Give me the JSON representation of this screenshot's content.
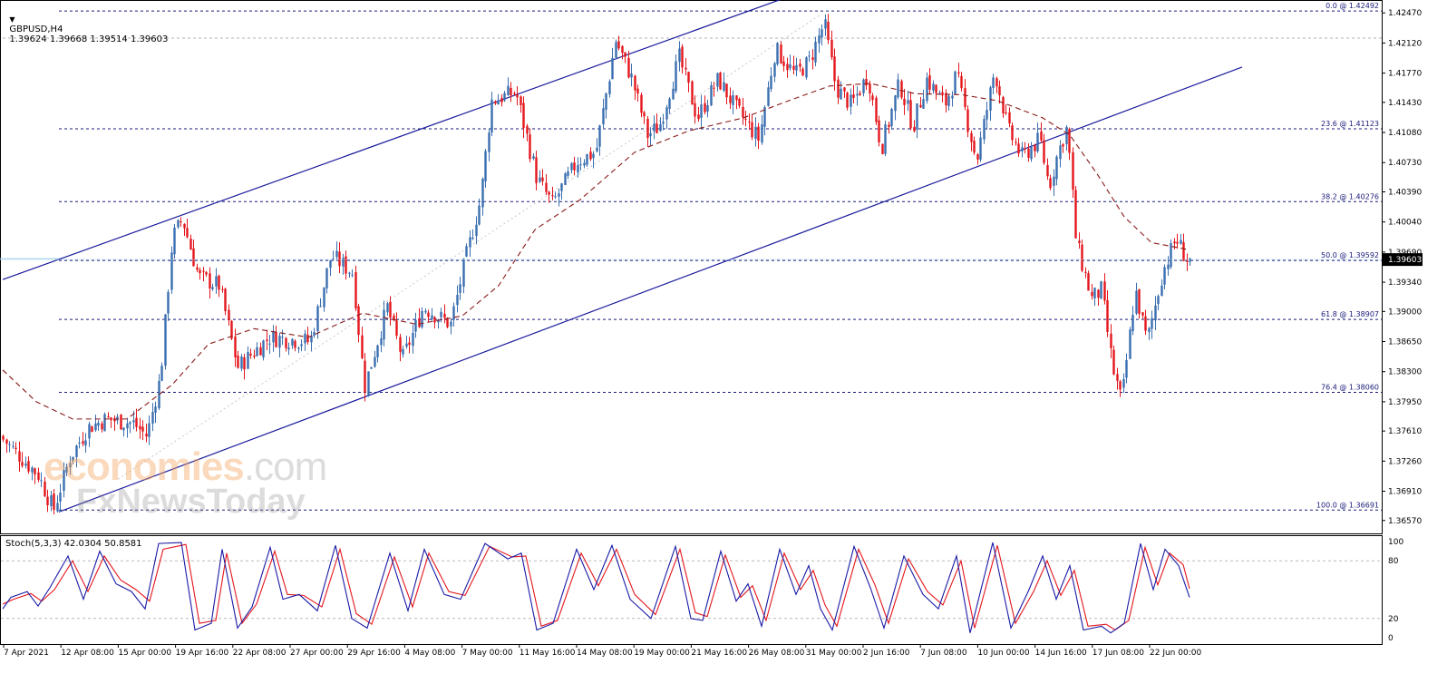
{
  "header": {
    "arrow_icon": "triangle-down-icon",
    "symbol": "GBPUSD,H4",
    "ohlc": "1.39624 1.39668 1.39514 1.39603"
  },
  "stoch_header": "Stoch(5,3,3) 42.0304 50.8581",
  "watermark": {
    "brand": "economies",
    "domain": ".com",
    "sub": "FxNewsToday"
  },
  "colors": {
    "bull": "#3a6fb0",
    "bear": "#e4161c",
    "ma": "#8b1a1a",
    "channel": "#1a1a9c",
    "fib": "#1a1a7a",
    "price_tag_bg": "#000000",
    "stoch_main": "#1a1aa6",
    "stoch_signal": "#e4161c"
  },
  "chart_data": {
    "type": "candlestick",
    "symbol": "GBPUSD",
    "timeframe": "H4",
    "price_axis": {
      "labels": [
        "1.42470",
        "1.42120",
        "1.41770",
        "1.41430",
        "1.41080",
        "1.40730",
        "1.40390",
        "1.40040",
        "1.39690",
        "1.39340",
        "1.39000",
        "1.38650",
        "1.38300",
        "1.37950",
        "1.37610",
        "1.37260",
        "1.36910",
        "1.36570"
      ],
      "range": [
        1.3642,
        1.4262
      ]
    },
    "current_price": "1.39603",
    "time_labels": [
      "7 Apr 2021",
      "12 Apr 08:00",
      "15 Apr 00:00",
      "19 Apr 16:00",
      "22 Apr 08:00",
      "27 Apr 00:00",
      "29 Apr 16:00",
      "4 May 08:00",
      "7 May 00:00",
      "11 May 16:00",
      "14 May 08:00",
      "19 May 00:00",
      "21 May 16:00",
      "26 May 08:00",
      "31 May 00:00",
      "2 Jun 16:00",
      "7 Jun 08:00",
      "10 Jun 00:00",
      "14 Jun 16:00",
      "17 Jun 08:00",
      "22 Jun 00:00"
    ],
    "fibonacci": [
      {
        "label": "0.0 @ 1.42492",
        "price": 1.42492
      },
      {
        "label": "23.6 @ 1.41123",
        "price": 1.41123
      },
      {
        "label": "38.2 @ 1.40276",
        "price": 1.40276
      },
      {
        "label": "50.0 @ 1.39592",
        "price": 1.39592
      },
      {
        "label": "61.8 @ 1.38907",
        "price": 1.38907
      },
      {
        "label": "76.4 @ 1.38060",
        "price": 1.3806
      },
      {
        "label": "100.0 @ 1.36691",
        "price": 1.36691
      }
    ],
    "price_path": [
      {
        "x": 3,
        "p": 1.3755
      },
      {
        "x": 45,
        "p": 1.371
      },
      {
        "x": 62,
        "p": 1.3669
      },
      {
        "x": 80,
        "p": 1.373
      },
      {
        "x": 100,
        "p": 1.3765
      },
      {
        "x": 120,
        "p": 1.3775
      },
      {
        "x": 150,
        "p": 1.377
      },
      {
        "x": 165,
        "p": 1.3755
      },
      {
        "x": 180,
        "p": 1.3825
      },
      {
        "x": 193,
        "p": 1.3985
      },
      {
        "x": 204,
        "p": 1.4008
      },
      {
        "x": 222,
        "p": 1.394
      },
      {
        "x": 245,
        "p": 1.393
      },
      {
        "x": 265,
        "p": 1.3835
      },
      {
        "x": 300,
        "p": 1.387
      },
      {
        "x": 345,
        "p": 1.3865
      },
      {
        "x": 368,
        "p": 1.3965
      },
      {
        "x": 392,
        "p": 1.3945
      },
      {
        "x": 405,
        "p": 1.3812
      },
      {
        "x": 430,
        "p": 1.3905
      },
      {
        "x": 447,
        "p": 1.3845
      },
      {
        "x": 470,
        "p": 1.3905
      },
      {
        "x": 500,
        "p": 1.3885
      },
      {
        "x": 515,
        "p": 1.3955
      },
      {
        "x": 533,
        "p": 1.403
      },
      {
        "x": 545,
        "p": 1.4145
      },
      {
        "x": 572,
        "p": 1.4155
      },
      {
        "x": 595,
        "p": 1.4055
      },
      {
        "x": 612,
        "p": 1.4025
      },
      {
        "x": 640,
        "p": 1.4075
      },
      {
        "x": 660,
        "p": 1.4085
      },
      {
        "x": 682,
        "p": 1.4215
      },
      {
        "x": 700,
        "p": 1.417
      },
      {
        "x": 717,
        "p": 1.4105
      },
      {
        "x": 730,
        "p": 1.4115
      },
      {
        "x": 752,
        "p": 1.4195
      },
      {
        "x": 772,
        "p": 1.4125
      },
      {
        "x": 795,
        "p": 1.417
      },
      {
        "x": 815,
        "p": 1.4135
      },
      {
        "x": 840,
        "p": 1.41
      },
      {
        "x": 858,
        "p": 1.4205
      },
      {
        "x": 880,
        "p": 1.4175
      },
      {
        "x": 895,
        "p": 1.419
      },
      {
        "x": 912,
        "p": 1.4235
      },
      {
        "x": 925,
        "p": 1.416
      },
      {
        "x": 942,
        "p": 1.414
      },
      {
        "x": 960,
        "p": 1.4175
      },
      {
        "x": 975,
        "p": 1.409
      },
      {
        "x": 995,
        "p": 1.4165
      },
      {
        "x": 1010,
        "p": 1.4115
      },
      {
        "x": 1025,
        "p": 1.417
      },
      {
        "x": 1045,
        "p": 1.414
      },
      {
        "x": 1058,
        "p": 1.4175
      },
      {
        "x": 1080,
        "p": 1.4075
      },
      {
        "x": 1100,
        "p": 1.418
      },
      {
        "x": 1115,
        "p": 1.411
      },
      {
        "x": 1130,
        "p": 1.408
      },
      {
        "x": 1150,
        "p": 1.41
      },
      {
        "x": 1160,
        "p": 1.4045
      },
      {
        "x": 1170,
        "p": 1.4085
      },
      {
        "x": 1180,
        "p": 1.4115
      },
      {
        "x": 1190,
        "p": 1.398
      },
      {
        "x": 1207,
        "p": 1.3915
      },
      {
        "x": 1218,
        "p": 1.3925
      },
      {
        "x": 1230,
        "p": 1.3835
      },
      {
        "x": 1240,
        "p": 1.3795
      },
      {
        "x": 1255,
        "p": 1.3925
      },
      {
        "x": 1268,
        "p": 1.3865
      },
      {
        "x": 1285,
        "p": 1.3945
      },
      {
        "x": 1300,
        "p": 1.3985
      },
      {
        "x": 1312,
        "p": 1.39603
      }
    ],
    "moving_average": {
      "style": "dashed",
      "path": [
        {
          "x": 3,
          "p": 1.3832
        },
        {
          "x": 40,
          "p": 1.3795
        },
        {
          "x": 80,
          "p": 1.3775
        },
        {
          "x": 140,
          "p": 1.3775
        },
        {
          "x": 190,
          "p": 1.3815
        },
        {
          "x": 230,
          "p": 1.3862
        },
        {
          "x": 280,
          "p": 1.388
        },
        {
          "x": 340,
          "p": 1.387
        },
        {
          "x": 400,
          "p": 1.3898
        },
        {
          "x": 460,
          "p": 1.3885
        },
        {
          "x": 510,
          "p": 1.3895
        },
        {
          "x": 550,
          "p": 1.393
        },
        {
          "x": 590,
          "p": 1.3995
        },
        {
          "x": 640,
          "p": 1.403
        },
        {
          "x": 700,
          "p": 1.4085
        },
        {
          "x": 760,
          "p": 1.411
        },
        {
          "x": 820,
          "p": 1.4125
        },
        {
          "x": 870,
          "p": 1.4145
        },
        {
          "x": 915,
          "p": 1.4162
        },
        {
          "x": 960,
          "p": 1.4165
        },
        {
          "x": 1010,
          "p": 1.4153
        },
        {
          "x": 1060,
          "p": 1.4152
        },
        {
          "x": 1100,
          "p": 1.4145
        },
        {
          "x": 1150,
          "p": 1.4125
        },
        {
          "x": 1180,
          "p": 1.4105
        },
        {
          "x": 1210,
          "p": 1.406
        },
        {
          "x": 1240,
          "p": 1.401
        },
        {
          "x": 1270,
          "p": 1.398
        },
        {
          "x": 1310,
          "p": 1.3972
        }
      ]
    },
    "channel": {
      "upper": [
        {
          "x": 3,
          "p": 1.3937
        },
        {
          "x": 870,
          "p": 1.4266
        }
      ],
      "lower": [
        {
          "x": 65,
          "p": 1.3667
        },
        {
          "x": 1370,
          "p": 1.4184
        }
      ],
      "median": [
        {
          "x": 130,
          "p": 1.3705
        },
        {
          "x": 905,
          "p": 1.4245
        }
      ]
    },
    "stochastic": {
      "label": "Stoch(5,3,3)",
      "main_value": "42.0304",
      "signal_value": "50.8581",
      "levels": [
        20,
        80
      ],
      "axis_labels": [
        "100",
        "80",
        "20",
        "0"
      ],
      "main_path": [
        {
          "x": 3,
          "v": 30
        },
        {
          "x": 12,
          "v": 42
        },
        {
          "x": 30,
          "v": 48
        },
        {
          "x": 42,
          "v": 33
        },
        {
          "x": 55,
          "v": 52
        },
        {
          "x": 75,
          "v": 85
        },
        {
          "x": 92,
          "v": 40
        },
        {
          "x": 110,
          "v": 90
        },
        {
          "x": 128,
          "v": 56
        },
        {
          "x": 145,
          "v": 48
        },
        {
          "x": 160,
          "v": 30
        },
        {
          "x": 175,
          "v": 98
        },
        {
          "x": 200,
          "v": 99
        },
        {
          "x": 215,
          "v": 8
        },
        {
          "x": 233,
          "v": 15
        },
        {
          "x": 245,
          "v": 92
        },
        {
          "x": 262,
          "v": 10
        },
        {
          "x": 278,
          "v": 32
        },
        {
          "x": 298,
          "v": 94
        },
        {
          "x": 312,
          "v": 40
        },
        {
          "x": 330,
          "v": 45
        },
        {
          "x": 350,
          "v": 28
        },
        {
          "x": 370,
          "v": 96
        },
        {
          "x": 388,
          "v": 20
        },
        {
          "x": 405,
          "v": 10
        },
        {
          "x": 430,
          "v": 88
        },
        {
          "x": 450,
          "v": 28
        },
        {
          "x": 468,
          "v": 92
        },
        {
          "x": 490,
          "v": 45
        },
        {
          "x": 508,
          "v": 40
        },
        {
          "x": 535,
          "v": 98
        },
        {
          "x": 560,
          "v": 82
        },
        {
          "x": 575,
          "v": 88
        },
        {
          "x": 592,
          "v": 8
        },
        {
          "x": 610,
          "v": 15
        },
        {
          "x": 636,
          "v": 92
        },
        {
          "x": 655,
          "v": 50
        },
        {
          "x": 675,
          "v": 96
        },
        {
          "x": 695,
          "v": 40
        },
        {
          "x": 718,
          "v": 20
        },
        {
          "x": 745,
          "v": 95
        },
        {
          "x": 762,
          "v": 20
        },
        {
          "x": 775,
          "v": 18
        },
        {
          "x": 795,
          "v": 90
        },
        {
          "x": 812,
          "v": 38
        },
        {
          "x": 825,
          "v": 56
        },
        {
          "x": 840,
          "v": 12
        },
        {
          "x": 860,
          "v": 92
        },
        {
          "x": 878,
          "v": 45
        },
        {
          "x": 892,
          "v": 75
        },
        {
          "x": 905,
          "v": 30
        },
        {
          "x": 918,
          "v": 8
        },
        {
          "x": 942,
          "v": 95
        },
        {
          "x": 960,
          "v": 52
        },
        {
          "x": 975,
          "v": 10
        },
        {
          "x": 997,
          "v": 85
        },
        {
          "x": 1018,
          "v": 45
        },
        {
          "x": 1035,
          "v": 30
        },
        {
          "x": 1055,
          "v": 85
        },
        {
          "x": 1070,
          "v": 5
        },
        {
          "x": 1095,
          "v": 99
        },
        {
          "x": 1115,
          "v": 10
        },
        {
          "x": 1135,
          "v": 50
        },
        {
          "x": 1150,
          "v": 85
        },
        {
          "x": 1165,
          "v": 40
        },
        {
          "x": 1180,
          "v": 75
        },
        {
          "x": 1195,
          "v": 8
        },
        {
          "x": 1215,
          "v": 12
        },
        {
          "x": 1225,
          "v": 5
        },
        {
          "x": 1240,
          "v": 15
        },
        {
          "x": 1258,
          "v": 98
        },
        {
          "x": 1272,
          "v": 50
        },
        {
          "x": 1285,
          "v": 92
        },
        {
          "x": 1300,
          "v": 75
        },
        {
          "x": 1312,
          "v": 42
        }
      ],
      "signal_path": [
        {
          "x": 3,
          "v": 35
        },
        {
          "x": 15,
          "v": 40
        },
        {
          "x": 34,
          "v": 46
        },
        {
          "x": 46,
          "v": 38
        },
        {
          "x": 60,
          "v": 50
        },
        {
          "x": 80,
          "v": 80
        },
        {
          "x": 97,
          "v": 48
        },
        {
          "x": 115,
          "v": 85
        },
        {
          "x": 133,
          "v": 60
        },
        {
          "x": 150,
          "v": 50
        },
        {
          "x": 165,
          "v": 38
        },
        {
          "x": 180,
          "v": 92
        },
        {
          "x": 205,
          "v": 97
        },
        {
          "x": 220,
          "v": 15
        },
        {
          "x": 238,
          "v": 18
        },
        {
          "x": 250,
          "v": 88
        },
        {
          "x": 267,
          "v": 15
        },
        {
          "x": 283,
          "v": 35
        },
        {
          "x": 303,
          "v": 90
        },
        {
          "x": 317,
          "v": 45
        },
        {
          "x": 335,
          "v": 44
        },
        {
          "x": 355,
          "v": 32
        },
        {
          "x": 375,
          "v": 92
        },
        {
          "x": 393,
          "v": 25
        },
        {
          "x": 410,
          "v": 14
        },
        {
          "x": 435,
          "v": 84
        },
        {
          "x": 455,
          "v": 32
        },
        {
          "x": 473,
          "v": 88
        },
        {
          "x": 495,
          "v": 48
        },
        {
          "x": 513,
          "v": 44
        },
        {
          "x": 540,
          "v": 95
        },
        {
          "x": 565,
          "v": 84
        },
        {
          "x": 580,
          "v": 85
        },
        {
          "x": 597,
          "v": 12
        },
        {
          "x": 615,
          "v": 18
        },
        {
          "x": 641,
          "v": 88
        },
        {
          "x": 660,
          "v": 54
        },
        {
          "x": 680,
          "v": 92
        },
        {
          "x": 700,
          "v": 45
        },
        {
          "x": 723,
          "v": 24
        },
        {
          "x": 750,
          "v": 92
        },
        {
          "x": 767,
          "v": 26
        },
        {
          "x": 780,
          "v": 22
        },
        {
          "x": 800,
          "v": 86
        },
        {
          "x": 817,
          "v": 42
        },
        {
          "x": 830,
          "v": 54
        },
        {
          "x": 845,
          "v": 18
        },
        {
          "x": 865,
          "v": 88
        },
        {
          "x": 883,
          "v": 50
        },
        {
          "x": 897,
          "v": 70
        },
        {
          "x": 910,
          "v": 34
        },
        {
          "x": 923,
          "v": 12
        },
        {
          "x": 947,
          "v": 92
        },
        {
          "x": 965,
          "v": 55
        },
        {
          "x": 980,
          "v": 15
        },
        {
          "x": 1002,
          "v": 82
        },
        {
          "x": 1023,
          "v": 48
        },
        {
          "x": 1040,
          "v": 34
        },
        {
          "x": 1060,
          "v": 80
        },
        {
          "x": 1075,
          "v": 10
        },
        {
          "x": 1100,
          "v": 96
        },
        {
          "x": 1120,
          "v": 15
        },
        {
          "x": 1140,
          "v": 48
        },
        {
          "x": 1155,
          "v": 80
        },
        {
          "x": 1170,
          "v": 44
        },
        {
          "x": 1185,
          "v": 70
        },
        {
          "x": 1200,
          "v": 12
        },
        {
          "x": 1220,
          "v": 14
        },
        {
          "x": 1230,
          "v": 8
        },
        {
          "x": 1245,
          "v": 18
        },
        {
          "x": 1263,
          "v": 94
        },
        {
          "x": 1277,
          "v": 55
        },
        {
          "x": 1290,
          "v": 88
        },
        {
          "x": 1305,
          "v": 76
        },
        {
          "x": 1312,
          "v": 51
        }
      ]
    }
  }
}
